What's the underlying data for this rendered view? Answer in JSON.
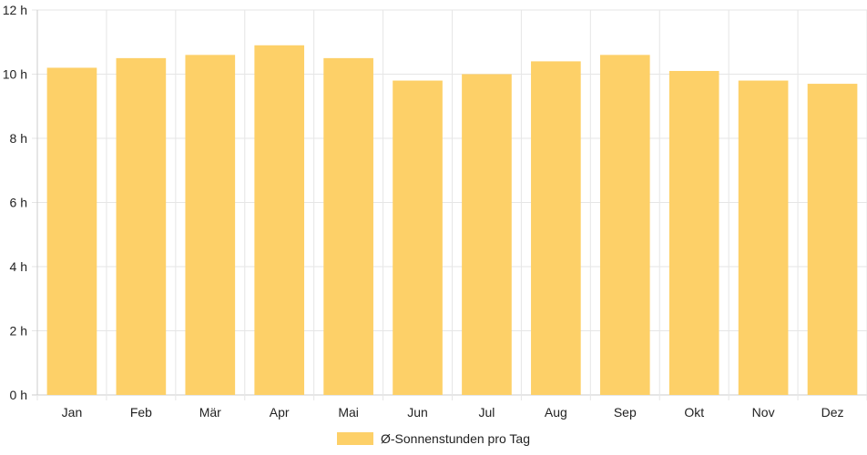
{
  "chart_data": {
    "type": "bar",
    "categories": [
      "Jan",
      "Feb",
      "Mär",
      "Apr",
      "Mai",
      "Jun",
      "Jul",
      "Aug",
      "Sep",
      "Okt",
      "Nov",
      "Dez"
    ],
    "series": [
      {
        "name": "Ø-Sonnenstunden pro Tag",
        "values": [
          10.2,
          10.5,
          10.6,
          10.9,
          10.5,
          9.8,
          10.0,
          10.4,
          10.6,
          10.1,
          9.8,
          9.7
        ]
      }
    ],
    "y_ticks": [
      "0 h",
      "2 h",
      "4 h",
      "6 h",
      "8 h",
      "10 h",
      "12 h"
    ],
    "ylim": [
      0,
      12
    ],
    "title": "",
    "xlabel": "",
    "ylabel": "",
    "grid": true,
    "legend_position": "bottom",
    "colors": {
      "bar": "#fdd068",
      "grid": "#e6e6e6",
      "axis": "#cccccc",
      "text": "#222222"
    }
  }
}
